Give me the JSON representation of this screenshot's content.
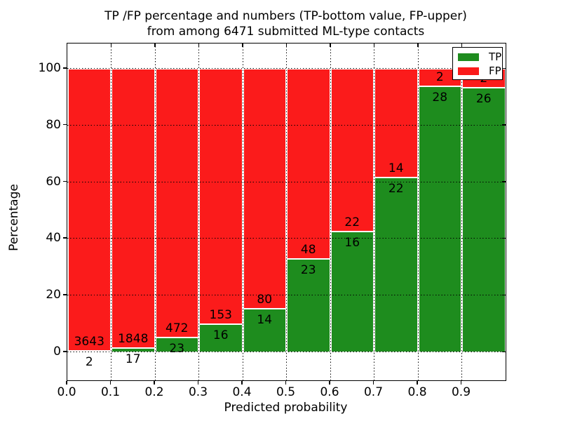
{
  "title": {
    "line1": "TP /FP percentage and numbers (TP-bottom value, FP-upper)",
    "line2": "from among 6471 submitted ML-type contacts"
  },
  "chart_data": {
    "type": "bar",
    "stacked": true,
    "normalized": "each bar scaled to 100%",
    "title": "TP /FP percentage and numbers (TP-bottom value, FP-upper) from among 6471 submitted ML-type contacts",
    "xlabel": "Predicted probability",
    "ylabel": "Percentage",
    "total_contacts": 6471,
    "bins": [
      "0.0-0.1",
      "0.1-0.2",
      "0.2-0.3",
      "0.3-0.4",
      "0.4-0.5",
      "0.5-0.6",
      "0.6-0.7",
      "0.7-0.8",
      "0.8-0.9",
      "0.9-1.0"
    ],
    "series": [
      {
        "name": "TP",
        "color": "#1e8c1e",
        "counts": [
          2,
          17,
          23,
          16,
          14,
          23,
          16,
          22,
          28,
          26
        ],
        "percent": [
          0.1,
          0.9,
          4.6,
          9.5,
          14.9,
          32.4,
          42.1,
          61.1,
          93.3,
          92.9
        ]
      },
      {
        "name": "FP",
        "color": "#fb1b1b",
        "counts": [
          3643,
          1848,
          472,
          153,
          80,
          48,
          22,
          14,
          2,
          2
        ],
        "percent": [
          99.9,
          99.1,
          95.4,
          90.5,
          85.1,
          67.6,
          57.9,
          38.9,
          6.7,
          7.1
        ]
      }
    ],
    "x_tick_labels": [
      "0.0",
      "0.1",
      "0.2",
      "0.3",
      "0.4",
      "0.5",
      "0.6",
      "0.7",
      "0.8",
      "0.9"
    ],
    "y_tick_values": [
      0,
      20,
      40,
      60,
      80,
      100
    ],
    "xlim": [
      0.0,
      1.0
    ],
    "ylim": [
      0,
      100
    ],
    "grid": "dotted black, both axes, drawn over bars",
    "bar_edge_color": "#ffffff",
    "label_note": "TP count printed below segment boundary, FP count above it",
    "legend": {
      "position": "upper right",
      "entries": [
        {
          "label": "TP",
          "color": "#1e8c1e"
        },
        {
          "label": "FP",
          "color": "#fb1b1b"
        }
      ]
    }
  }
}
